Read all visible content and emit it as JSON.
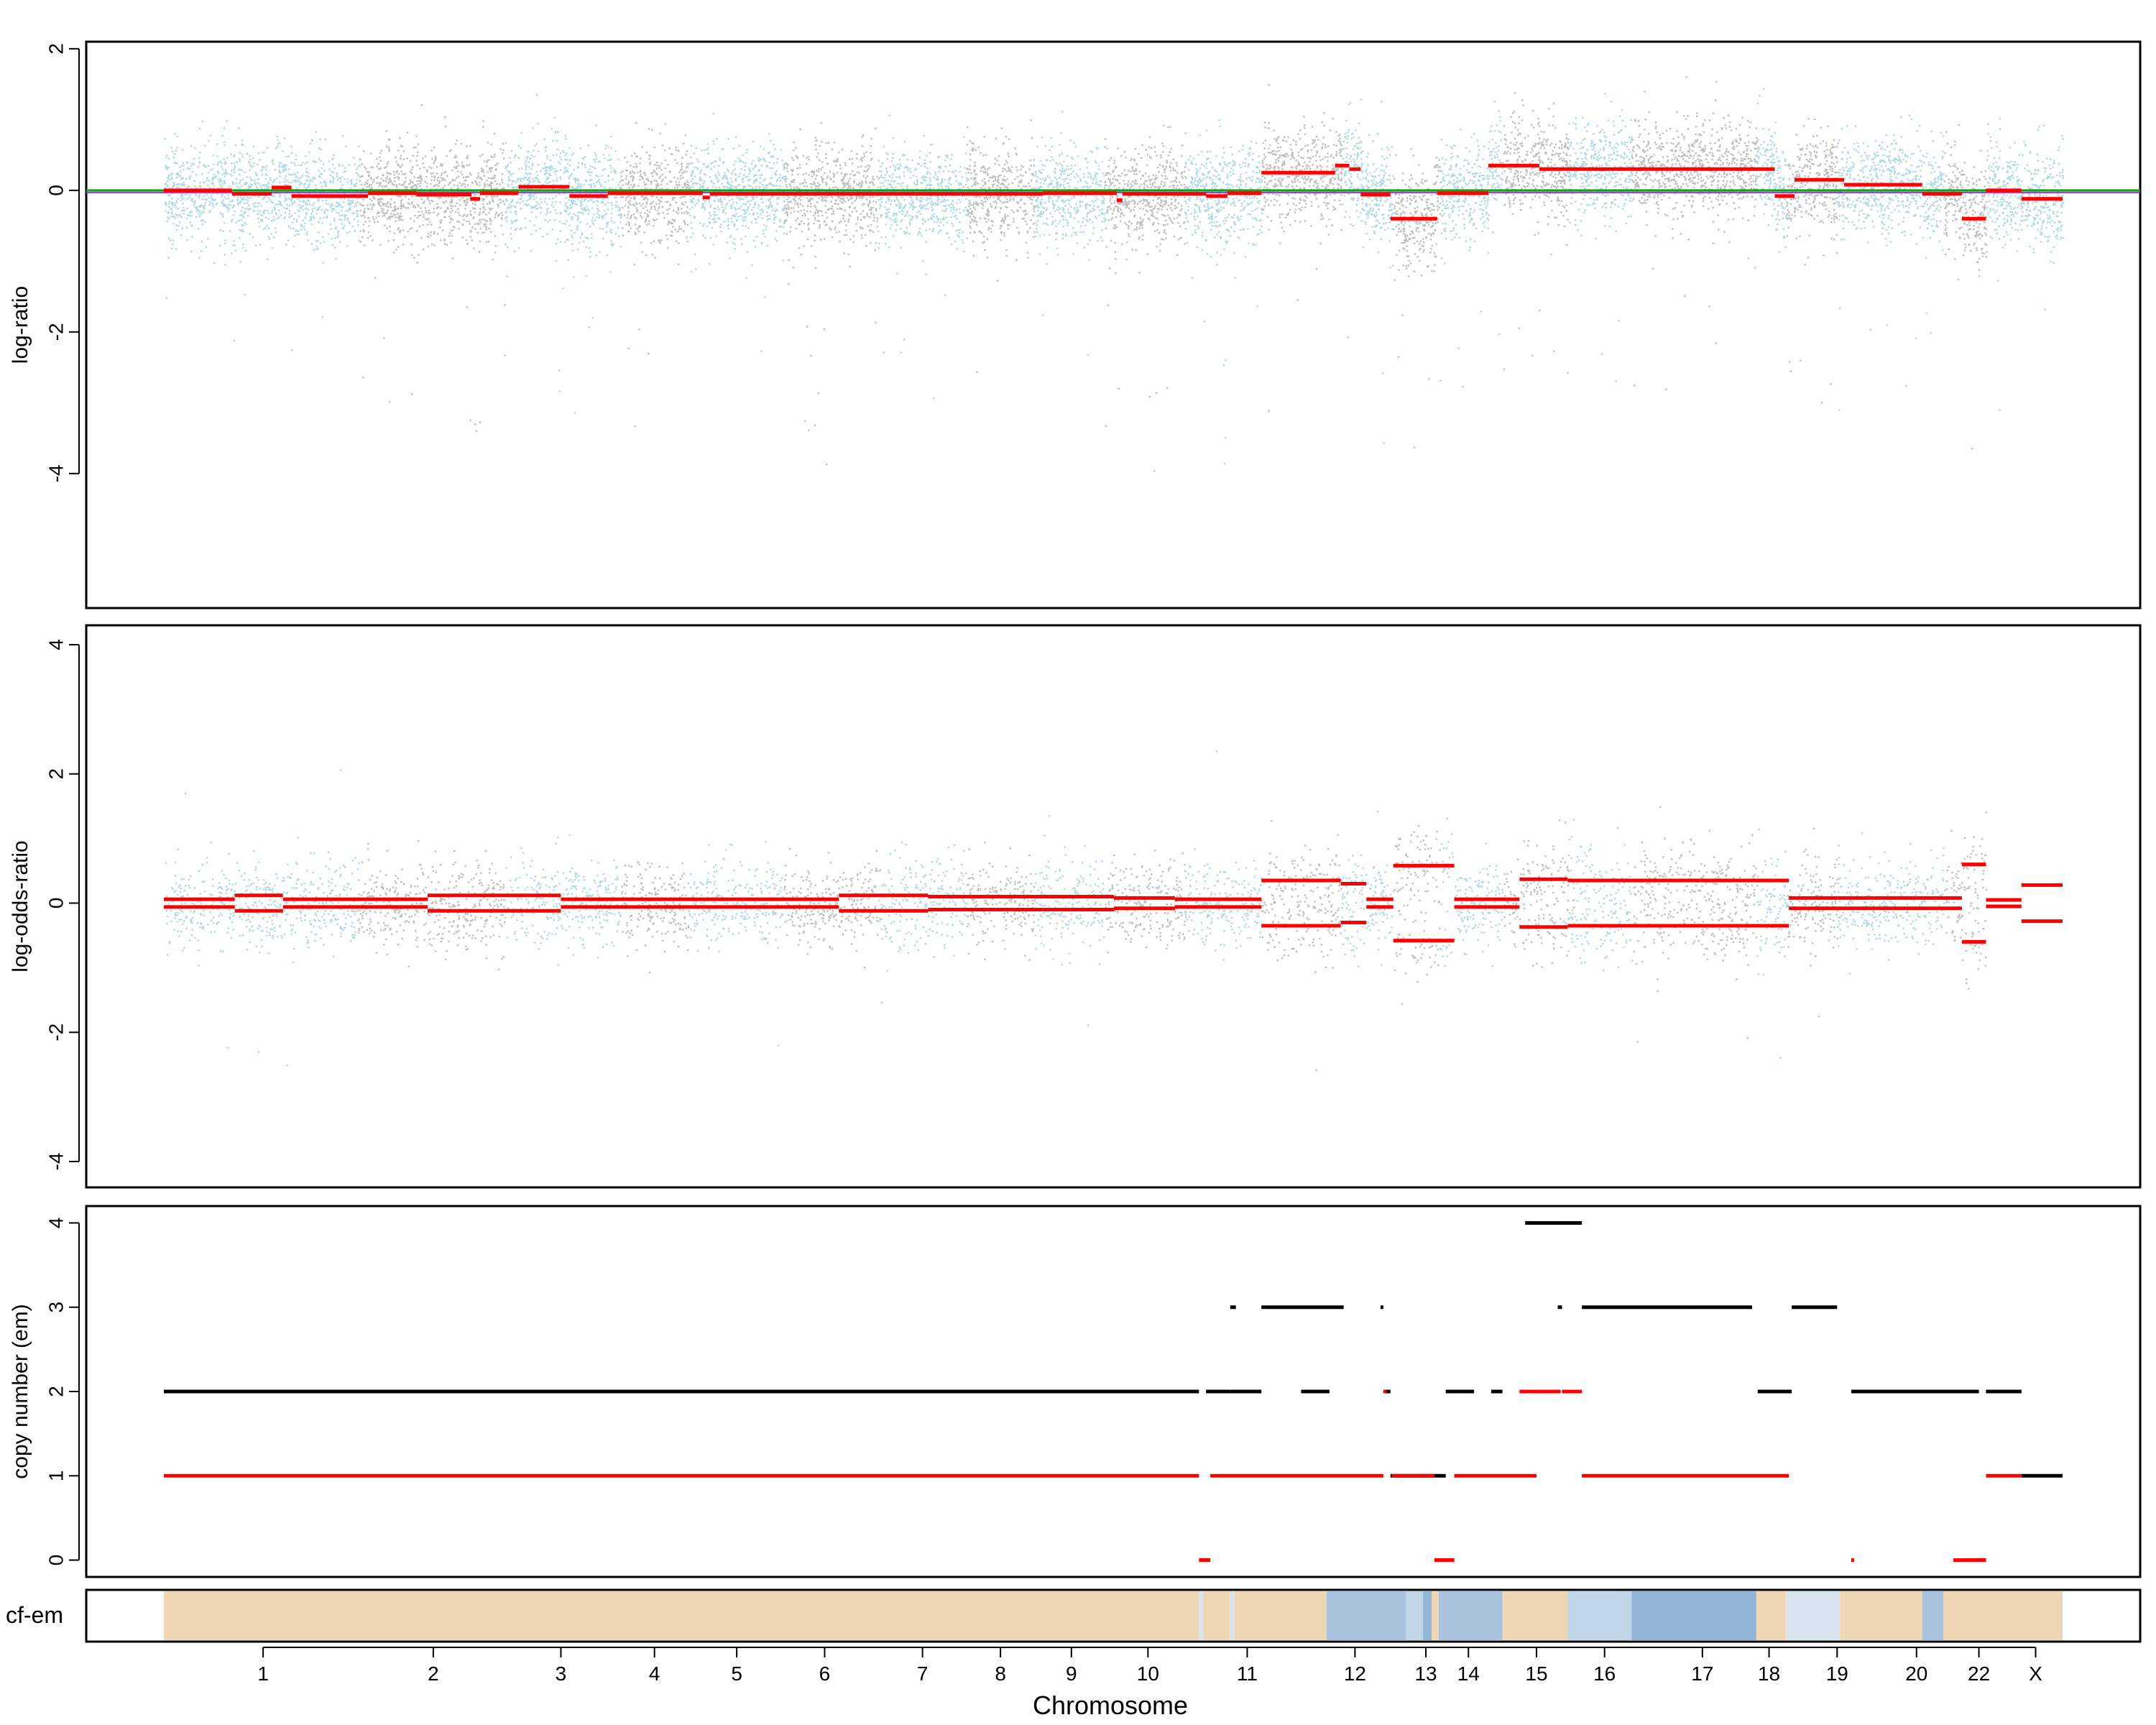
{
  "colors": {
    "light": "#add8e6",
    "gray": "#bebebe",
    "seg": "#ff0000",
    "green": "#00b000",
    "purple": "#a020f0",
    "black": "#000000",
    "tan": "#efd6b5",
    "blue1": "#a9c3de",
    "blue2": "#92b4d6",
    "blue3": "#c1d5e8",
    "blue4": "#d8e5f0"
  },
  "chart_data": [
    {
      "type": "scatter",
      "panel": "log-ratio",
      "ylabel": "log-ratio",
      "ylim": [
        -5.9,
        2.1
      ],
      "yticks": [
        2,
        0,
        -2,
        -4
      ],
      "ytick_labels": [
        "2",
        "0",
        "-2",
        "-4"
      ],
      "reference_lines": [
        0,
        -0.03
      ],
      "segments": [
        [
          0.0,
          0.048,
          0.0
        ],
        [
          0.048,
          0.076,
          -0.05
        ],
        [
          0.076,
          0.09,
          0.04
        ],
        [
          0.09,
          0.144,
          -0.08
        ],
        [
          0.144,
          0.178,
          -0.04
        ],
        [
          0.178,
          0.217,
          -0.06
        ],
        [
          0.216,
          0.223,
          -0.12
        ],
        [
          0.223,
          0.25,
          -0.04
        ],
        [
          0.25,
          0.286,
          0.05
        ],
        [
          0.286,
          0.313,
          -0.08
        ],
        [
          0.313,
          0.38,
          -0.04
        ],
        [
          0.38,
          0.385,
          -0.1
        ],
        [
          0.385,
          0.476,
          -0.05
        ],
        [
          0.476,
          0.53,
          -0.05
        ],
        [
          0.53,
          0.562,
          -0.05
        ],
        [
          0.562,
          0.62,
          -0.05
        ],
        [
          0.62,
          0.65,
          -0.04
        ],
        [
          0.65,
          0.672,
          -0.04
        ],
        [
          0.672,
          0.676,
          -0.14
        ],
        [
          0.676,
          0.735,
          -0.05
        ],
        [
          0.735,
          0.75,
          -0.08
        ],
        [
          0.75,
          0.774,
          -0.04
        ],
        [
          0.774,
          0.826,
          0.25
        ],
        [
          0.826,
          0.836,
          0.35
        ],
        [
          0.836,
          0.844,
          0.3
        ],
        [
          0.844,
          0.865,
          -0.06
        ],
        [
          0.865,
          0.898,
          -0.4
        ],
        [
          0.898,
          0.934,
          -0.04
        ],
        [
          0.934,
          0.97,
          0.35
        ],
        [
          0.97,
          0.988,
          0.3
        ],
        [
          0.988,
          1.0,
          0.3
        ],
        [
          1.0,
          1.136,
          0.3
        ],
        [
          1.136,
          1.15,
          -0.08
        ],
        [
          1.15,
          1.185,
          0.15
        ],
        [
          1.185,
          1.214,
          0.08
        ],
        [
          1.214,
          1.24,
          0.08
        ],
        [
          1.24,
          1.268,
          -0.05
        ],
        [
          1.268,
          1.285,
          -0.4
        ],
        [
          1.285,
          1.31,
          0.0
        ],
        [
          1.31,
          1.339,
          -0.12
        ]
      ]
    },
    {
      "type": "scatter",
      "panel": "log-odds-ratio",
      "ylabel": "log-odds-ratio",
      "ylim": [
        -4.4,
        4.3
      ],
      "yticks": [
        4,
        2,
        0,
        -2,
        -4
      ],
      "ytick_labels": [
        "4",
        "2",
        "0",
        "-2",
        "-4"
      ],
      "segments": [
        [
          0.0,
          0.05,
          0.06
        ],
        [
          0.05,
          0.084,
          0.12
        ],
        [
          0.084,
          0.186,
          0.06
        ],
        [
          0.186,
          0.28,
          0.12
        ],
        [
          0.28,
          0.336,
          0.06
        ],
        [
          0.336,
          0.476,
          0.0
        ],
        [
          0.476,
          0.539,
          0.12
        ],
        [
          0.539,
          0.62,
          0.1
        ],
        [
          0.62,
          0.67,
          0.1
        ],
        [
          0.67,
          0.713,
          0.08
        ],
        [
          0.713,
          0.774,
          0.0
        ],
        [
          0.774,
          0.83,
          0.35
        ],
        [
          0.83,
          0.848,
          0.3
        ],
        [
          0.848,
          0.867,
          0.0
        ],
        [
          0.867,
          0.91,
          0.58
        ],
        [
          0.91,
          0.956,
          0.0
        ],
        [
          0.956,
          0.99,
          0.37
        ],
        [
          0.99,
          1.0,
          0.35
        ],
        [
          1.0,
          1.146,
          0.35
        ],
        [
          1.146,
          1.18,
          0.08
        ],
        [
          1.18,
          1.268,
          0.08
        ],
        [
          1.268,
          1.285,
          0.6
        ],
        [
          1.285,
          1.31,
          0.05
        ],
        [
          1.31,
          1.339,
          0.28
        ]
      ]
    },
    {
      "type": "line",
      "panel": "copy-number",
      "ylabel": "copy number (em)",
      "ylim": [
        -0.2,
        4.2
      ],
      "yticks": [
        4,
        3,
        2,
        1,
        0
      ],
      "ytick_labels": [
        "4",
        "3",
        "2",
        "1",
        "0"
      ],
      "total_copy_number": [
        [
          0.0,
          0.73,
          2
        ],
        [
          0.735,
          0.752,
          2
        ],
        [
          0.752,
          0.774,
          2
        ],
        [
          0.752,
          0.756,
          3
        ],
        [
          0.774,
          0.832,
          3
        ],
        [
          0.802,
          0.822,
          2
        ],
        [
          0.858,
          0.86,
          3
        ],
        [
          0.86,
          0.865,
          2
        ],
        [
          0.865,
          0.888,
          1
        ],
        [
          0.888,
          0.904,
          1
        ],
        [
          0.904,
          0.924,
          2
        ],
        [
          0.96,
          0.988,
          4
        ],
        [
          0.988,
          1.0,
          4
        ],
        [
          0.936,
          0.944,
          2
        ],
        [
          0.983,
          0.986,
          3
        ],
        [
          1.0,
          1.08,
          3
        ],
        [
          1.08,
          1.12,
          3
        ],
        [
          1.124,
          1.148,
          2
        ],
        [
          1.148,
          1.18,
          3
        ],
        [
          1.19,
          1.202,
          2
        ],
        [
          1.2,
          1.28,
          2
        ],
        [
          1.285,
          1.31,
          2
        ],
        [
          1.31,
          1.339,
          1
        ]
      ],
      "minor_copy_number": [
        [
          0.0,
          0.73,
          1
        ],
        [
          0.73,
          0.738,
          0
        ],
        [
          0.738,
          0.86,
          1
        ],
        [
          0.86,
          0.862,
          2
        ],
        [
          0.866,
          0.896,
          1
        ],
        [
          0.896,
          0.91,
          0
        ],
        [
          0.91,
          0.968,
          1
        ],
        [
          0.956,
          0.985,
          2
        ],
        [
          0.986,
          1.0,
          2
        ],
        [
          1.0,
          1.146,
          1
        ],
        [
          1.19,
          1.192,
          0
        ],
        [
          1.262,
          1.268,
          0
        ],
        [
          1.268,
          1.285,
          0
        ],
        [
          1.285,
          1.31,
          1
        ]
      ]
    },
    {
      "type": "heatmap",
      "panel": "cellular-fraction",
      "ylabel": "cf-em",
      "blocks": [
        [
          0.0,
          0.73,
          "tan"
        ],
        [
          0.73,
          0.733,
          "blue4"
        ],
        [
          0.733,
          0.752,
          "tan"
        ],
        [
          0.752,
          0.755,
          "blue4"
        ],
        [
          0.755,
          0.82,
          "tan"
        ],
        [
          0.82,
          0.876,
          "blue1"
        ],
        [
          0.876,
          0.888,
          "blue3"
        ],
        [
          0.888,
          0.894,
          "blue2"
        ],
        [
          0.894,
          0.899,
          "tan"
        ],
        [
          0.899,
          0.944,
          "blue1"
        ],
        [
          0.944,
          0.99,
          "tan"
        ],
        [
          0.99,
          1.035,
          "blue3"
        ],
        [
          1.035,
          1.123,
          "blue2"
        ],
        [
          1.123,
          1.144,
          "tan"
        ],
        [
          1.144,
          1.182,
          "blue4"
        ],
        [
          1.182,
          1.24,
          "tan"
        ],
        [
          1.24,
          1.255,
          "blue1"
        ],
        [
          1.255,
          1.339,
          "tan"
        ]
      ]
    }
  ],
  "x_axis": {
    "xlabel": "Chromosome",
    "chromosomes": [
      "1",
      "2",
      "3",
      "4",
      "5",
      "6",
      "7",
      "8",
      "9",
      "10",
      "11",
      "12",
      "13",
      "14",
      "15",
      "16",
      "17",
      "18",
      "19",
      "20",
      "22",
      "X"
    ],
    "chromosome_centers": [
      0.07,
      0.19,
      0.28,
      0.346,
      0.404,
      0.466,
      0.535,
      0.59,
      0.64,
      0.694,
      0.764,
      0.84,
      0.89,
      0.92,
      0.968,
      1.016,
      1.085,
      1.132,
      1.18,
      1.236,
      1.28,
      1.32
    ]
  }
}
